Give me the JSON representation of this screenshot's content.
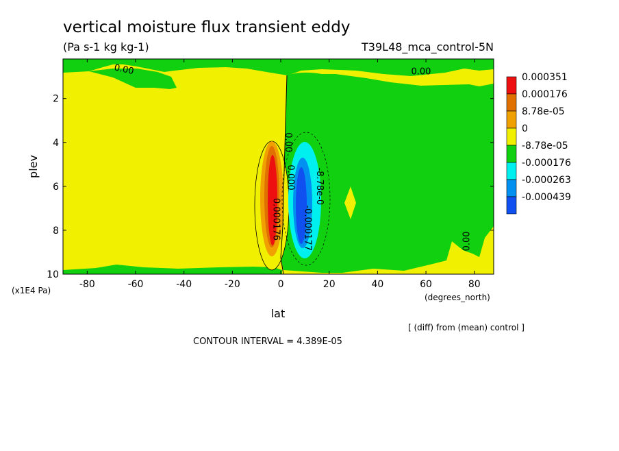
{
  "chart_data": {
    "type": "heatmap",
    "title": "vertical moisture flux transient eddy",
    "units": "(Pa s-1 kg kg-1)",
    "experiment": "T39L48_mca_control-5N",
    "xlabel": "lat",
    "x_units": "(degrees_north)",
    "ylabel": "plev",
    "y_units": "(x1E4 Pa)",
    "xlim": [
      -90,
      88
    ],
    "ylim": [
      10,
      0.2
    ],
    "x_ticks": [
      -80,
      -60,
      -40,
      -20,
      0,
      20,
      40,
      60,
      80
    ],
    "x_tick_labels": [
      "-80",
      "-60",
      "-40",
      "-20",
      "0",
      "20",
      "40",
      "60",
      "80"
    ],
    "y_ticks": [
      2,
      4,
      6,
      8,
      10
    ],
    "y_tick_labels": [
      "2",
      "4",
      "6",
      "8",
      "10"
    ],
    "legend": {
      "placement": "right",
      "colors": [
        "#ee1010",
        "#e07000",
        "#f0a000",
        "#f0f000",
        "#10d010",
        "#00f0f0",
        "#0090f0",
        "#1050f0"
      ],
      "labels": [
        "0.000351",
        "0.000176",
        "8.78e-05",
        "0",
        "-8.78e-05",
        "-0.000176",
        "-0.000263",
        "-0.000439"
      ]
    },
    "contour_labels": [
      {
        "text": "0.00",
        "lat": -65,
        "plev": 0.8
      },
      {
        "text": "0.00",
        "lat": 58,
        "plev": 0.9
      },
      {
        "text": "0.00",
        "lat": 78,
        "plev": 8.5
      },
      {
        "text": "0.00",
        "lat": 2,
        "plev": 4.0
      },
      {
        "text": "0.000176",
        "lat": -3,
        "plev": 7.5
      },
      {
        "text": "-8.78e-0",
        "lat": 15,
        "plev": 6.0
      },
      {
        "text": "0.000",
        "lat": 3,
        "plev": 5.6
      },
      {
        "text": "-0.000177",
        "lat": 10,
        "plev": 7.9
      }
    ],
    "comparison": "[ (diff) from (mean) control ]",
    "contour_interval": "CONTOUR INTERVAL = 4.389E-05"
  }
}
